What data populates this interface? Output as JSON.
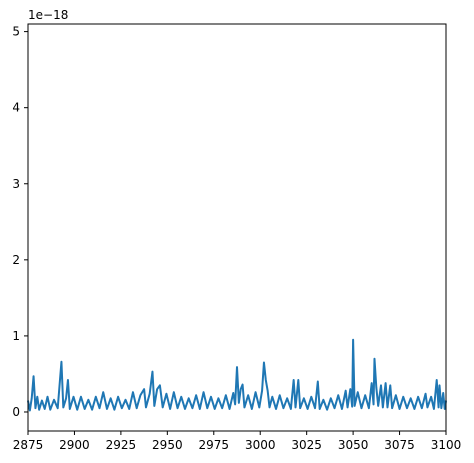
{
  "chart_data": {
    "type": "line",
    "title": "",
    "xlabel": "",
    "ylabel": "",
    "y_offset_text": "1e−18",
    "xlim": [
      2875,
      3100
    ],
    "ylim": [
      -0.25,
      5.1
    ],
    "x_ticks": [
      2875,
      2900,
      2925,
      2950,
      2975,
      3000,
      3025,
      3050,
      3075,
      3100
    ],
    "x_tick_labels": [
      "2875",
      "2900",
      "2925",
      "2950",
      "2975",
      "3000",
      "3025",
      "3050",
      "3075",
      "3100"
    ],
    "y_ticks": [
      0,
      1,
      2,
      3,
      4,
      5
    ],
    "y_tick_labels": [
      "0",
      "1",
      "2",
      "3",
      "4",
      "5"
    ],
    "grid": false,
    "legend": "none",
    "series_color": "#1f77b4",
    "series": [
      {
        "points": [
          [
            2875.0,
            0.15
          ],
          [
            2876.0,
            0.02
          ],
          [
            2877.0,
            0.18
          ],
          [
            2878.0,
            0.47
          ],
          [
            2879.0,
            0.05
          ],
          [
            2880.0,
            0.2
          ],
          [
            2881.0,
            0.03
          ],
          [
            2882.5,
            0.15
          ],
          [
            2884.0,
            0.04
          ],
          [
            2885.5,
            0.2
          ],
          [
            2887.0,
            0.03
          ],
          [
            2889.0,
            0.16
          ],
          [
            2891.0,
            0.05
          ],
          [
            2893.0,
            0.66
          ],
          [
            2894.0,
            0.06
          ],
          [
            2895.5,
            0.18
          ],
          [
            2896.5,
            0.42
          ],
          [
            2897.5,
            0.04
          ],
          [
            2899.5,
            0.2
          ],
          [
            2901.5,
            0.03
          ],
          [
            2903.5,
            0.2
          ],
          [
            2905.5,
            0.04
          ],
          [
            2907.5,
            0.16
          ],
          [
            2909.5,
            0.03
          ],
          [
            2911.5,
            0.2
          ],
          [
            2913.5,
            0.05
          ],
          [
            2915.5,
            0.26
          ],
          [
            2917.5,
            0.04
          ],
          [
            2919.5,
            0.18
          ],
          [
            2921.5,
            0.03
          ],
          [
            2923.5,
            0.2
          ],
          [
            2925.5,
            0.05
          ],
          [
            2927.5,
            0.16
          ],
          [
            2929.5,
            0.04
          ],
          [
            2931.5,
            0.26
          ],
          [
            2933.5,
            0.05
          ],
          [
            2935.5,
            0.22
          ],
          [
            2937.5,
            0.3
          ],
          [
            2938.5,
            0.06
          ],
          [
            2940.5,
            0.24
          ],
          [
            2942.0,
            0.53
          ],
          [
            2943.0,
            0.08
          ],
          [
            2944.5,
            0.3
          ],
          [
            2946.0,
            0.35
          ],
          [
            2947.5,
            0.06
          ],
          [
            2949.5,
            0.24
          ],
          [
            2951.5,
            0.04
          ],
          [
            2953.5,
            0.26
          ],
          [
            2955.5,
            0.05
          ],
          [
            2957.5,
            0.2
          ],
          [
            2959.5,
            0.04
          ],
          [
            2961.5,
            0.18
          ],
          [
            2963.5,
            0.05
          ],
          [
            2965.5,
            0.22
          ],
          [
            2967.5,
            0.04
          ],
          [
            2969.5,
            0.26
          ],
          [
            2971.5,
            0.05
          ],
          [
            2973.5,
            0.2
          ],
          [
            2975.5,
            0.04
          ],
          [
            2977.5,
            0.18
          ],
          [
            2979.5,
            0.05
          ],
          [
            2981.5,
            0.22
          ],
          [
            2983.5,
            0.04
          ],
          [
            2985.5,
            0.25
          ],
          [
            2986.5,
            0.1
          ],
          [
            2987.5,
            0.59
          ],
          [
            2988.5,
            0.12
          ],
          [
            2989.5,
            0.3
          ],
          [
            2990.5,
            0.36
          ],
          [
            2991.5,
            0.06
          ],
          [
            2993.5,
            0.22
          ],
          [
            2995.5,
            0.04
          ],
          [
            2997.5,
            0.26
          ],
          [
            2999.5,
            0.06
          ],
          [
            3001.0,
            0.28
          ],
          [
            3002.0,
            0.65
          ],
          [
            3003.0,
            0.42
          ],
          [
            3004.0,
            0.28
          ],
          [
            3005.0,
            0.06
          ],
          [
            3006.5,
            0.2
          ],
          [
            3008.5,
            0.04
          ],
          [
            3010.5,
            0.22
          ],
          [
            3012.5,
            0.05
          ],
          [
            3014.5,
            0.18
          ],
          [
            3016.5,
            0.04
          ],
          [
            3018.0,
            0.42
          ],
          [
            3019.0,
            0.06
          ],
          [
            3020.5,
            0.42
          ],
          [
            3021.5,
            0.05
          ],
          [
            3023.5,
            0.18
          ],
          [
            3025.5,
            0.04
          ],
          [
            3027.5,
            0.2
          ],
          [
            3029.5,
            0.05
          ],
          [
            3031.0,
            0.4
          ],
          [
            3032.0,
            0.04
          ],
          [
            3034.0,
            0.16
          ],
          [
            3036.0,
            0.03
          ],
          [
            3038.0,
            0.18
          ],
          [
            3040.0,
            0.05
          ],
          [
            3042.0,
            0.22
          ],
          [
            3044.0,
            0.04
          ],
          [
            3046.0,
            0.28
          ],
          [
            3047.0,
            0.06
          ],
          [
            3048.5,
            0.3
          ],
          [
            3049.5,
            0.07
          ],
          [
            3050.0,
            0.95
          ],
          [
            3050.8,
            0.08
          ],
          [
            3052.5,
            0.26
          ],
          [
            3054.5,
            0.05
          ],
          [
            3056.5,
            0.22
          ],
          [
            3058.5,
            0.05
          ],
          [
            3060.0,
            0.38
          ],
          [
            3061.0,
            0.1
          ],
          [
            3061.5,
            0.7
          ],
          [
            3062.5,
            0.32
          ],
          [
            3063.5,
            0.08
          ],
          [
            3065.0,
            0.35
          ],
          [
            3066.0,
            0.06
          ],
          [
            3067.5,
            0.38
          ],
          [
            3068.5,
            0.06
          ],
          [
            3070.0,
            0.35
          ],
          [
            3071.0,
            0.05
          ],
          [
            3073.0,
            0.22
          ],
          [
            3075.0,
            0.04
          ],
          [
            3077.0,
            0.2
          ],
          [
            3079.0,
            0.05
          ],
          [
            3081.0,
            0.18
          ],
          [
            3083.0,
            0.04
          ],
          [
            3085.0,
            0.2
          ],
          [
            3087.0,
            0.05
          ],
          [
            3089.0,
            0.24
          ],
          [
            3090.0,
            0.06
          ],
          [
            3092.0,
            0.2
          ],
          [
            3093.5,
            0.04
          ],
          [
            3095.0,
            0.42
          ],
          [
            3096.0,
            0.06
          ],
          [
            3096.5,
            0.35
          ],
          [
            3097.5,
            0.05
          ],
          [
            3098.5,
            0.25
          ],
          [
            3099.3,
            0.04
          ],
          [
            3100.0,
            0.15
          ]
        ]
      }
    ]
  }
}
